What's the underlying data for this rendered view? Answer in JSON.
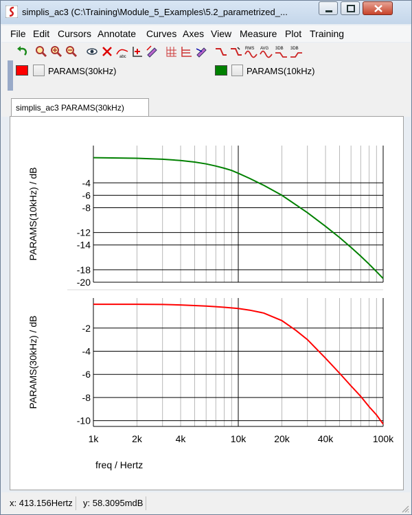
{
  "window": {
    "title": "simplis_ac3 (C:\\Training\\Module_5_Examples\\5.2_parametrized_..."
  },
  "menu": [
    "File",
    "Edit",
    "Cursors",
    "Annotate",
    "Curves",
    "Axes",
    "View",
    "Measure",
    "Plot",
    "Training"
  ],
  "toolbar": {
    "icons": [
      "undo-icon",
      "zoom-full-icon",
      "zoom-in-icon",
      "zoom-out-icon",
      "eye-icon",
      "delete-curve-icon",
      "label-curve-icon",
      "add-axis-icon",
      "edit-curve-icon",
      "grid-icon",
      "stack-icon",
      "curve-style-icon",
      "step-up-icon",
      "step-down-icon",
      "rms-icon",
      "avg-icon",
      "3db-low-icon",
      "3db-high-icon"
    ],
    "rms_label": "RMS",
    "avg_label": "AVG",
    "db_label": "3DB"
  },
  "legend": [
    {
      "label": "PARAMS(30kHz)",
      "color": "#ff0000"
    },
    {
      "label": "PARAMS(10kHz)",
      "color": "#008000"
    }
  ],
  "tab": {
    "label": "simplis_ac3 PARAMS(30kHz)"
  },
  "chart_data": [
    {
      "type": "line",
      "ylabel": "PARAMS(10kHz) / dB",
      "xscale": "log",
      "xlim": [
        1000,
        100000
      ],
      "ylim": [
        -20,
        2
      ],
      "yticks": [
        -4,
        -6,
        -8,
        -12,
        -14,
        -18,
        -20
      ],
      "ytick_labels": [
        "-4",
        "-6",
        "-8",
        "-12",
        "-14",
        "-18",
        "-20"
      ],
      "series": [
        {
          "name": "PARAMS(10kHz)",
          "color": "#008000",
          "x": [
            1000,
            1500,
            2000,
            3000,
            4000,
            5000,
            6000,
            7000,
            8000,
            9000,
            10000,
            12000,
            15000,
            20000,
            30000,
            40000,
            50000,
            60000,
            70000,
            80000,
            90000,
            100000
          ],
          "y": [
            0.05,
            0.0,
            -0.05,
            -0.2,
            -0.4,
            -0.65,
            -0.95,
            -1.3,
            -1.65,
            -2.0,
            -2.45,
            -3.3,
            -4.4,
            -6.0,
            -8.8,
            -11.0,
            -12.8,
            -14.4,
            -15.8,
            -17.1,
            -18.3,
            -19.4
          ]
        }
      ]
    },
    {
      "type": "line",
      "ylabel": "PARAMS(30kHz) / dB",
      "xlabel": "freq / Hertz",
      "xscale": "log",
      "xlim": [
        1000,
        100000
      ],
      "ylim": [
        -10.5,
        0.6
      ],
      "yticks": [
        -2,
        -4,
        -6,
        -8,
        -10
      ],
      "ytick_labels": [
        "-2",
        "-4",
        "-6",
        "-8",
        "-10"
      ],
      "xticks": [
        1000,
        2000,
        4000,
        10000,
        20000,
        40000,
        100000
      ],
      "xtick_labels": [
        "1k",
        "2k",
        "4k",
        "10k",
        "20k",
        "40k",
        "100k"
      ],
      "series": [
        {
          "name": "PARAMS(30kHz)",
          "color": "#ff0000",
          "x": [
            1000,
            2000,
            3000,
            4000,
            5000,
            6000,
            7000,
            8000,
            10000,
            12000,
            15000,
            20000,
            25000,
            30000,
            40000,
            50000,
            60000,
            70000,
            80000,
            90000,
            100000
          ],
          "y": [
            0.06,
            0.06,
            0.04,
            0.0,
            -0.05,
            -0.1,
            -0.15,
            -0.2,
            -0.3,
            -0.45,
            -0.7,
            -1.35,
            -2.2,
            -3.0,
            -4.6,
            -5.9,
            -7.0,
            -7.9,
            -8.8,
            -9.5,
            -10.3
          ]
        }
      ]
    }
  ],
  "status": {
    "x": "x: 413.156Hertz",
    "y": "y: 58.3095mdB"
  }
}
